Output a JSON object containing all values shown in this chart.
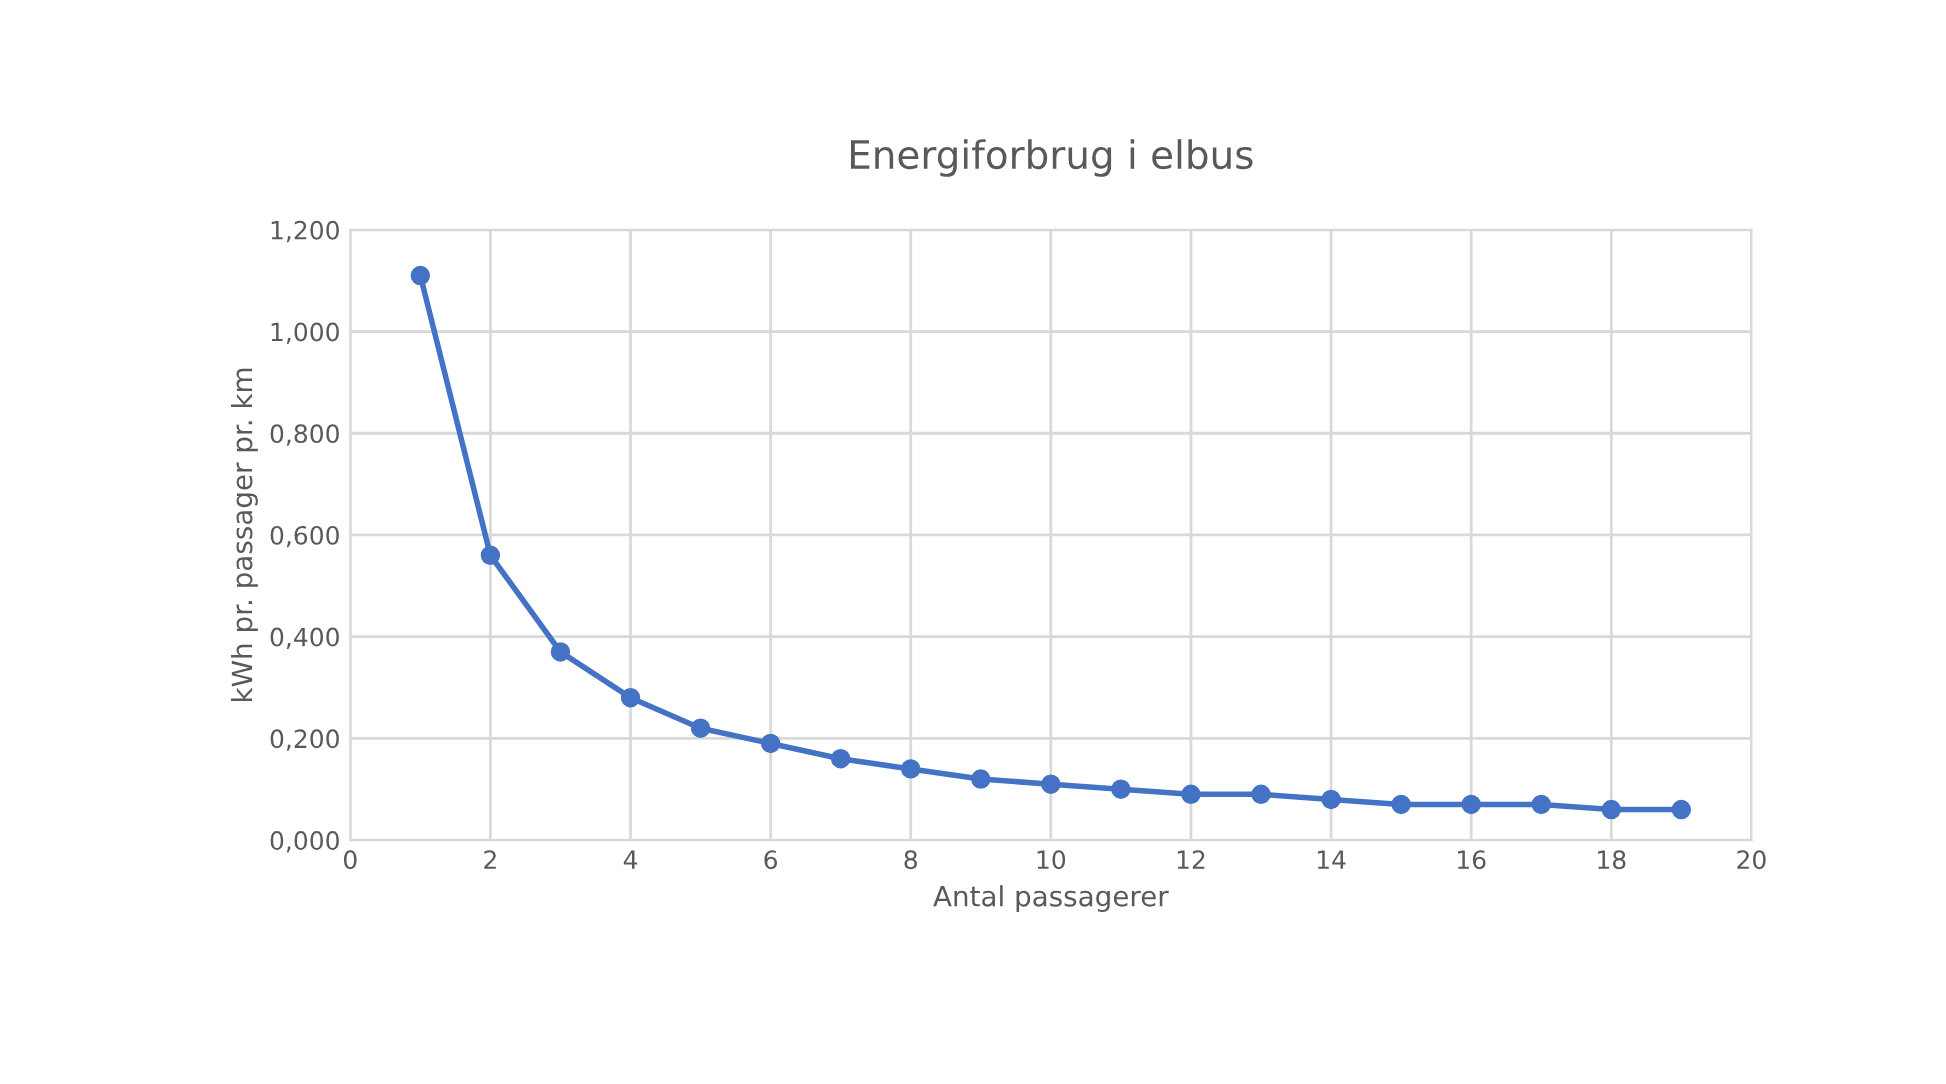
{
  "chart_data": {
    "type": "line",
    "title": "Energiforbrug i elbus",
    "xlabel": "Antal passagerer",
    "ylabel": "kWh pr. passager pr. km",
    "x": [
      1,
      2,
      3,
      4,
      5,
      6,
      7,
      8,
      9,
      10,
      11,
      12,
      13,
      14,
      15,
      16,
      17,
      18,
      19
    ],
    "series": [
      {
        "color": "#4472c4",
        "values": [
          1.11,
          0.56,
          0.37,
          0.28,
          0.22,
          0.19,
          0.16,
          0.14,
          0.12,
          0.11,
          0.1,
          0.09,
          0.09,
          0.08,
          0.07,
          0.07,
          0.07,
          0.06,
          0.06
        ]
      }
    ],
    "xlim": [
      0,
      20
    ],
    "xticks": [
      0,
      2,
      4,
      6,
      8,
      10,
      12,
      14,
      16,
      18,
      20
    ],
    "ylim": [
      0,
      1.2
    ],
    "yticks": [
      {
        "value": 0,
        "label": "0,000"
      },
      {
        "value": 0.2,
        "label": "0,200"
      },
      {
        "value": 0.4,
        "label": "0,400"
      },
      {
        "value": 0.6,
        "label": "0,600"
      },
      {
        "value": 0.8,
        "label": "0,800"
      },
      {
        "value": 1.0,
        "label": "1,000"
      },
      {
        "value": 1.2,
        "label": "1,200"
      }
    ],
    "grid": true,
    "marker": "circle",
    "line_style": "solid"
  }
}
